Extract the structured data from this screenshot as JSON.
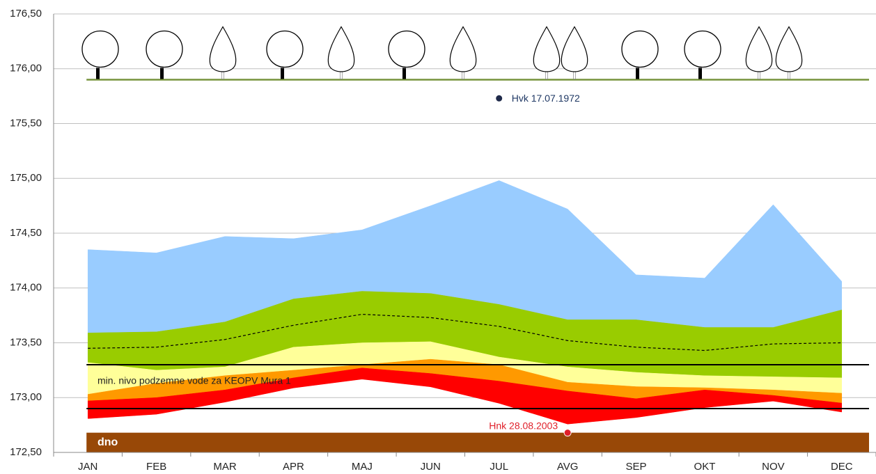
{
  "chart_data": {
    "type": "band",
    "categories": [
      "JAN",
      "FEB",
      "MAR",
      "APR",
      "MAJ",
      "JUN",
      "JUL",
      "AVG",
      "SEP",
      "OKT",
      "NOV",
      "DEC"
    ],
    "series": [
      {
        "color": "#99ccff",
        "values": [
          174.35,
          174.32,
          174.47,
          174.45,
          174.53,
          174.75,
          174.98,
          174.72,
          174.12,
          174.09,
          174.76,
          174.06
        ]
      },
      {
        "color": "#99cc00",
        "values": [
          173.59,
          173.6,
          173.69,
          173.9,
          173.97,
          173.95,
          173.85,
          173.71,
          173.71,
          173.64,
          173.64,
          173.8
        ]
      },
      {
        "color": "#ffff99",
        "values": [
          173.32,
          173.25,
          173.28,
          173.46,
          173.5,
          173.51,
          173.37,
          173.28,
          173.23,
          173.2,
          173.19,
          173.18
        ]
      },
      {
        "color": "#ff9900",
        "values": [
          173.03,
          173.13,
          173.2,
          173.25,
          173.3,
          173.35,
          173.3,
          173.14,
          173.1,
          173.09,
          173.07,
          173.04
        ]
      },
      {
        "color": "#ff0000",
        "values": [
          172.97,
          173.0,
          173.07,
          173.18,
          173.27,
          173.22,
          173.15,
          173.06,
          172.99,
          173.07,
          173.02,
          172.95
        ]
      },
      {
        "color": "#ff0000",
        "values": [
          172.81,
          172.85,
          172.96,
          173.09,
          173.17,
          173.1,
          172.95,
          172.76,
          172.82,
          172.91,
          172.97,
          172.87
        ]
      }
    ],
    "mean_line": {
      "color": "#000000",
      "dashed": true,
      "values": [
        173.45,
        173.46,
        173.53,
        173.66,
        173.76,
        173.73,
        173.65,
        173.52,
        173.46,
        173.43,
        173.49,
        173.5
      ]
    },
    "reference_lines": [
      {
        "value": 173.3,
        "color": "#000000",
        "label": "min. nivo podzemne vode za KEOPV Mura 1"
      },
      {
        "value": 172.9,
        "color": "#000000"
      }
    ],
    "tree_line": {
      "value": 175.9,
      "color": "#77933c"
    },
    "bed": {
      "value": 172.68,
      "color": "#984807",
      "label": "dno"
    },
    "points": [
      {
        "category": "JUL",
        "value": 175.73,
        "color": "#1f2a4a",
        "label": "Hvk 17.07.1972",
        "label_color": "#1f3864"
      },
      {
        "category": "AVG",
        "value": 172.68,
        "color": "#e0202a",
        "label": "Hnk 28.08.2003",
        "label_color": "#e0202a"
      }
    ],
    "ylim": [
      172.5,
      176.5
    ],
    "yticks": [
      {
        "value": 172.5,
        "label": "172,50"
      },
      {
        "value": 173.0,
        "label": "173,00"
      },
      {
        "value": 173.5,
        "label": "173,50"
      },
      {
        "value": 174.0,
        "label": "174,00"
      },
      {
        "value": 174.5,
        "label": "174,50"
      },
      {
        "value": 175.0,
        "label": "175,00"
      },
      {
        "value": 175.5,
        "label": "175,50"
      },
      {
        "value": 176.0,
        "label": "176,00"
      },
      {
        "value": 176.5,
        "label": "176,50"
      }
    ],
    "grid": true
  }
}
